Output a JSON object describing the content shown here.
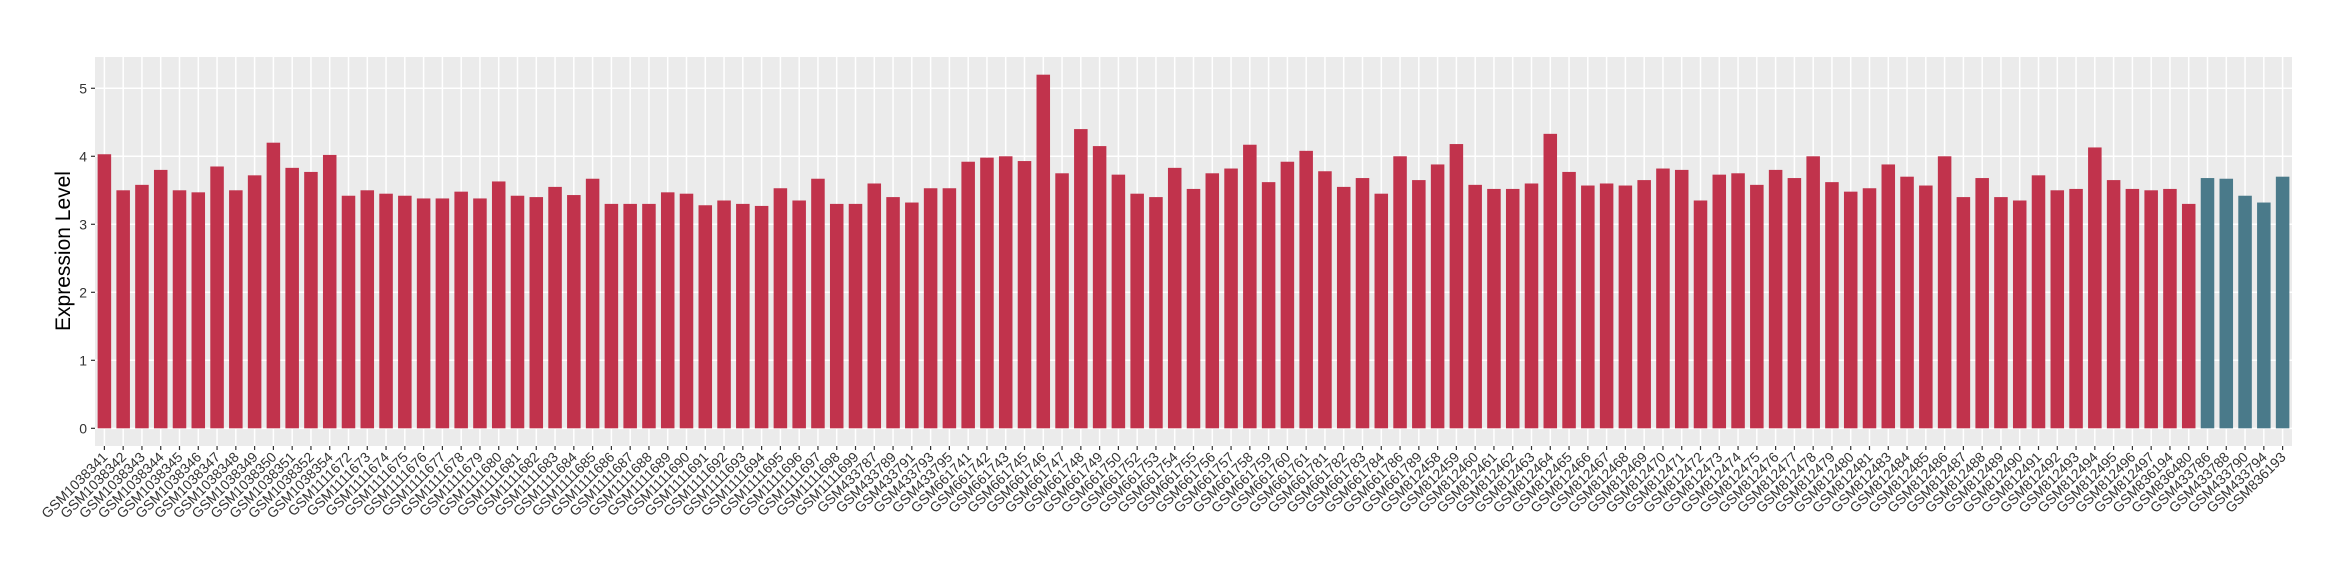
{
  "chart_data": {
    "type": "bar",
    "y_label": "Expression Level",
    "categories": [
      "GSM1038341",
      "GSM1038342",
      "GSM1038343",
      "GSM1038344",
      "GSM1038345",
      "GSM1038346",
      "GSM1038347",
      "GSM1038348",
      "GSM1038349",
      "GSM1038350",
      "GSM1038351",
      "GSM1038352",
      "GSM1038354",
      "GSM1111672",
      "GSM1111673",
      "GSM1111674",
      "GSM1111675",
      "GSM1111676",
      "GSM1111677",
      "GSM1111678",
      "GSM1111679",
      "GSM1111680",
      "GSM1111681",
      "GSM1111682",
      "GSM1111683",
      "GSM1111684",
      "GSM1111685",
      "GSM1111686",
      "GSM1111687",
      "GSM1111688",
      "GSM1111689",
      "GSM1111690",
      "GSM1111691",
      "GSM1111692",
      "GSM1111693",
      "GSM1111694",
      "GSM1111695",
      "GSM1111696",
      "GSM1111697",
      "GSM1111698",
      "GSM1111699",
      "GSM433787",
      "GSM433789",
      "GSM433791",
      "GSM433793",
      "GSM433795",
      "GSM661741",
      "GSM661742",
      "GSM661743",
      "GSM661745",
      "GSM661746",
      "GSM661747",
      "GSM661748",
      "GSM661749",
      "GSM661750",
      "GSM661752",
      "GSM661753",
      "GSM661754",
      "GSM661755",
      "GSM661756",
      "GSM661757",
      "GSM661758",
      "GSM661759",
      "GSM661760",
      "GSM661761",
      "GSM661781",
      "GSM661782",
      "GSM661783",
      "GSM661784",
      "GSM661786",
      "GSM661789",
      "GSM812458",
      "GSM812459",
      "GSM812460",
      "GSM812461",
      "GSM812462",
      "GSM812463",
      "GSM812464",
      "GSM812465",
      "GSM812466",
      "GSM812467",
      "GSM812468",
      "GSM812469",
      "GSM812470",
      "GSM812471",
      "GSM812472",
      "GSM812473",
      "GSM812474",
      "GSM812475",
      "GSM812476",
      "GSM812477",
      "GSM812478",
      "GSM812479",
      "GSM812480",
      "GSM812481",
      "GSM812483",
      "GSM812484",
      "GSM812485",
      "GSM812486",
      "GSM812487",
      "GSM812488",
      "GSM812489",
      "GSM812490",
      "GSM812491",
      "GSM812492",
      "GSM812493",
      "GSM812494",
      "GSM812495",
      "GSM812496",
      "GSM812497",
      "GSM836194",
      "GSM836480",
      "GSM433786",
      "GSM433788",
      "GSM433790",
      "GSM433794",
      "GSM836193"
    ],
    "values": [
      4.03,
      3.5,
      3.58,
      3.8,
      3.5,
      3.47,
      3.85,
      3.5,
      3.72,
      4.2,
      3.83,
      3.77,
      4.02,
      3.42,
      3.5,
      3.45,
      3.42,
      3.38,
      3.38,
      3.48,
      3.38,
      3.63,
      3.42,
      3.4,
      3.55,
      3.43,
      3.67,
      3.3,
      3.3,
      3.3,
      3.47,
      3.45,
      3.28,
      3.35,
      3.3,
      3.27,
      3.53,
      3.35,
      3.67,
      3.3,
      3.3,
      3.6,
      3.4,
      3.32,
      3.53,
      3.53,
      3.92,
      3.98,
      4.0,
      3.93,
      5.2,
      3.75,
      4.4,
      4.15,
      3.73,
      3.45,
      3.4,
      3.83,
      3.52,
      3.75,
      3.82,
      4.17,
      3.62,
      3.92,
      4.08,
      3.78,
      3.55,
      3.68,
      3.45,
      4.0,
      3.65,
      3.88,
      4.18,
      3.58,
      3.52,
      3.52,
      3.6,
      4.33,
      3.77,
      3.57,
      3.6,
      3.57,
      3.65,
      3.82,
      3.8,
      3.35,
      3.73,
      3.75,
      3.58,
      3.8,
      3.68,
      4.0,
      3.62,
      3.48,
      3.53,
      3.88,
      3.7,
      3.57,
      4.0,
      3.4,
      3.68,
      3.4,
      3.35,
      3.72,
      3.5,
      3.52,
      4.13,
      3.65,
      3.52,
      3.5,
      3.52,
      3.3,
      3.68,
      3.67,
      3.42,
      3.32,
      3.7
    ],
    "colors": [
      "#c1334c",
      "#c1334c",
      "#c1334c",
      "#c1334c",
      "#c1334c",
      "#c1334c",
      "#c1334c",
      "#c1334c",
      "#c1334c",
      "#c1334c",
      "#c1334c",
      "#c1334c",
      "#c1334c",
      "#c1334c",
      "#c1334c",
      "#c1334c",
      "#c1334c",
      "#c1334c",
      "#c1334c",
      "#c1334c",
      "#c1334c",
      "#c1334c",
      "#c1334c",
      "#c1334c",
      "#c1334c",
      "#c1334c",
      "#c1334c",
      "#c1334c",
      "#c1334c",
      "#c1334c",
      "#c1334c",
      "#c1334c",
      "#c1334c",
      "#c1334c",
      "#c1334c",
      "#c1334c",
      "#c1334c",
      "#c1334c",
      "#c1334c",
      "#c1334c",
      "#c1334c",
      "#c1334c",
      "#c1334c",
      "#c1334c",
      "#c1334c",
      "#c1334c",
      "#c1334c",
      "#c1334c",
      "#c1334c",
      "#c1334c",
      "#c1334c",
      "#c1334c",
      "#c1334c",
      "#c1334c",
      "#c1334c",
      "#c1334c",
      "#c1334c",
      "#c1334c",
      "#c1334c",
      "#c1334c",
      "#c1334c",
      "#c1334c",
      "#c1334c",
      "#c1334c",
      "#c1334c",
      "#c1334c",
      "#c1334c",
      "#c1334c",
      "#c1334c",
      "#c1334c",
      "#c1334c",
      "#c1334c",
      "#c1334c",
      "#c1334c",
      "#c1334c",
      "#c1334c",
      "#c1334c",
      "#c1334c",
      "#c1334c",
      "#c1334c",
      "#c1334c",
      "#c1334c",
      "#c1334c",
      "#c1334c",
      "#c1334c",
      "#c1334c",
      "#c1334c",
      "#c1334c",
      "#c1334c",
      "#c1334c",
      "#c1334c",
      "#c1334c",
      "#c1334c",
      "#c1334c",
      "#c1334c",
      "#c1334c",
      "#c1334c",
      "#c1334c",
      "#c1334c",
      "#c1334c",
      "#c1334c",
      "#c1334c",
      "#c1334c",
      "#c1334c",
      "#c1334c",
      "#c1334c",
      "#c1334c",
      "#c1334c",
      "#c1334c",
      "#c1334c",
      "#c1334c",
      "#c1334c",
      "#4a7a8a",
      "#4a7a8a",
      "#4a7a8a",
      "#4a7a8a",
      "#4a7a8a"
    ],
    "ylim": [
      -0.26,
      5.46
    ],
    "yticks": [
      0,
      1,
      2,
      3,
      4,
      5
    ],
    "grid": true
  }
}
